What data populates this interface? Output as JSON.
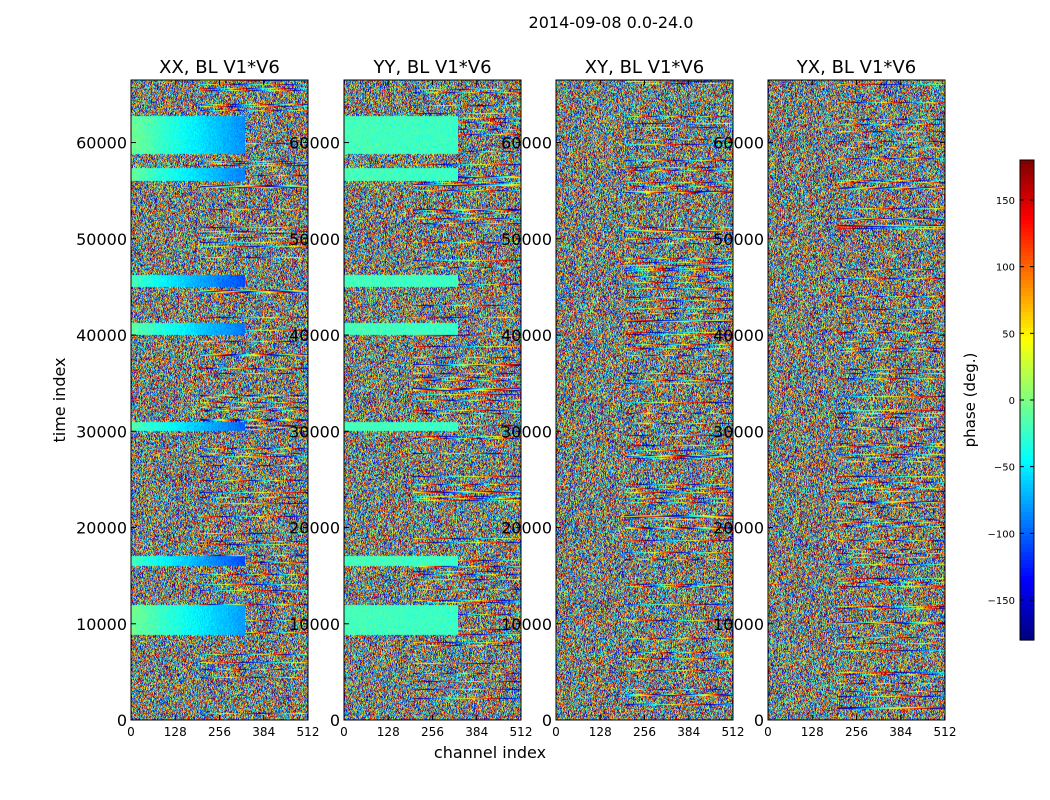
{
  "chart_data": {
    "type": "heatmap",
    "title": "2014-09-08 0.0-24.0",
    "xlabel": "channel index",
    "ylabel": "time index",
    "colorbar_label": "phase (deg.)",
    "xlim": [
      0,
      512
    ],
    "ylim": [
      0,
      66500
    ],
    "clim": [
      -180,
      180
    ],
    "x_ticks": [
      0,
      128,
      256,
      384,
      512
    ],
    "y_ticks": [
      0,
      10000,
      20000,
      30000,
      40000,
      50000,
      60000
    ],
    "colorbar_ticks": [
      -150,
      -100,
      -50,
      0,
      50,
      100,
      150
    ],
    "colormap": "jet",
    "panels": [
      {
        "title": "XX, BL V1*V6",
        "smooth_bands": [
          {
            "y0": 58800,
            "y1": 62800,
            "x0": 0,
            "x1": 330,
            "phase_start": -5,
            "phase_end": -85
          },
          {
            "y0": 56000,
            "y1": 57400,
            "x0": 0,
            "x1": 330,
            "phase_start": -10,
            "phase_end": -90
          },
          {
            "y0": 45000,
            "y1": 46200,
            "x0": 0,
            "x1": 330,
            "phase_start": -20,
            "phase_end": -110
          },
          {
            "y0": 40000,
            "y1": 41200,
            "x0": 0,
            "x1": 330,
            "phase_start": -10,
            "phase_end": -95
          },
          {
            "y0": 30000,
            "y1": 31000,
            "x0": 0,
            "x1": 330,
            "phase_start": -15,
            "phase_end": -100
          },
          {
            "y0": 16000,
            "y1": 17000,
            "x0": 0,
            "x1": 330,
            "phase_start": -20,
            "phase_end": -110
          },
          {
            "y0": 8800,
            "y1": 12000,
            "x0": 0,
            "x1": 330,
            "phase_start": -5,
            "phase_end": -80
          }
        ]
      },
      {
        "title": "YY, BL V1*V6",
        "smooth_bands": [
          {
            "y0": 58800,
            "y1": 62800,
            "x0": 0,
            "x1": 330,
            "phase_start": -20,
            "phase_end": -25
          },
          {
            "y0": 56000,
            "y1": 57400,
            "x0": 0,
            "x1": 330,
            "phase_start": -20,
            "phase_end": -25
          },
          {
            "y0": 45000,
            "y1": 46200,
            "x0": 0,
            "x1": 330,
            "phase_start": -20,
            "phase_end": -25
          },
          {
            "y0": 40000,
            "y1": 41200,
            "x0": 0,
            "x1": 330,
            "phase_start": -20,
            "phase_end": -25
          },
          {
            "y0": 30000,
            "y1": 31000,
            "x0": 0,
            "x1": 330,
            "phase_start": -20,
            "phase_end": -25
          },
          {
            "y0": 16000,
            "y1": 17000,
            "x0": 0,
            "x1": 330,
            "phase_start": -20,
            "phase_end": -25
          },
          {
            "y0": 8800,
            "y1": 12000,
            "x0": 0,
            "x1": 330,
            "phase_start": -20,
            "phase_end": -25
          }
        ]
      },
      {
        "title": "XY, BL V1*V6",
        "smooth_bands": []
      },
      {
        "title": "YX, BL V1*V6",
        "smooth_bands": []
      }
    ]
  }
}
